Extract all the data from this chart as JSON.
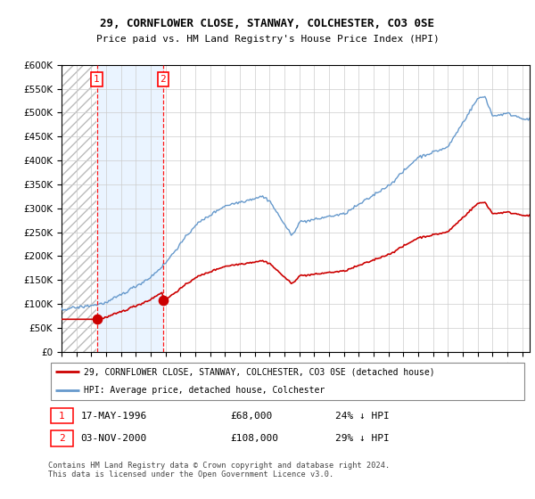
{
  "title1": "29, CORNFLOWER CLOSE, STANWAY, COLCHESTER, CO3 0SE",
  "title2": "Price paid vs. HM Land Registry's House Price Index (HPI)",
  "hpi_color": "#6699cc",
  "price_color": "#cc0000",
  "legend_label1": "29, CORNFLOWER CLOSE, STANWAY, COLCHESTER, CO3 0SE (detached house)",
  "legend_label2": "HPI: Average price, detached house, Colchester",
  "sale1_date": "17-MAY-1996",
  "sale1_price": 68000,
  "sale1_pct": "24% ↓ HPI",
  "sale2_date": "03-NOV-2000",
  "sale2_price": 108000,
  "sale2_pct": "29% ↓ HPI",
  "footnote": "Contains HM Land Registry data © Crown copyright and database right 2024.\nThis data is licensed under the Open Government Licence v3.0.",
  "ylim_max": 600000,
  "ylim_min": 0,
  "shade_color": "#ddeeff",
  "background_color": "#ffffff",
  "grid_color": "#cccccc",
  "sale1_t": 1996.37,
  "sale2_t": 2000.84,
  "xmin": 1994,
  "xmax": 2025.5
}
